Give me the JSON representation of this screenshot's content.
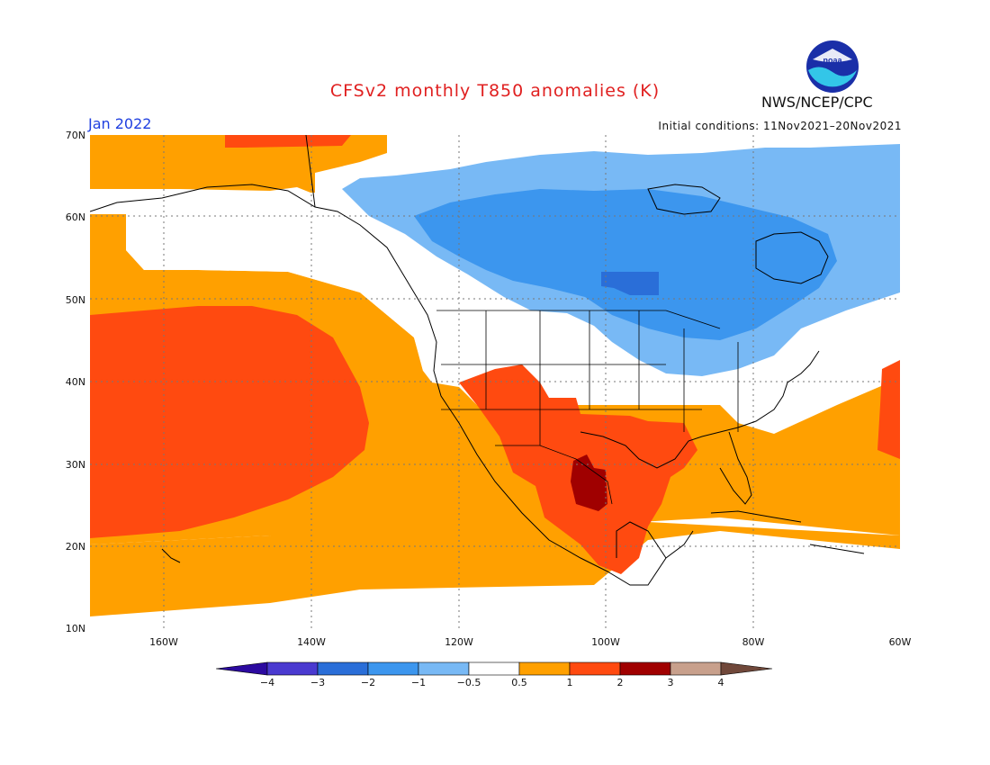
{
  "header": {
    "title": "CFSv2 monthly T850 anomalies (K)",
    "month": "Jan 2022",
    "initial_conditions": "Initial conditions: 11Nov2021–20Nov2021",
    "agency": "NWS/NCEP/CPC",
    "logo_text": "noaa"
  },
  "axes": {
    "lat_labels": [
      "70N",
      "60N",
      "50N",
      "40N",
      "30N",
      "20N",
      "10N"
    ],
    "lon_labels": [
      "160W",
      "140W",
      "120W",
      "100W",
      "80W",
      "60W"
    ]
  },
  "colorbar": {
    "labels": [
      "−4",
      "−3",
      "−2",
      "−1",
      "−0.5",
      "0.5",
      "1",
      "2",
      "3",
      "4"
    ],
    "colors": [
      "#2c0aa0",
      "#4a3ad0",
      "#2a6ed8",
      "#3c96ee",
      "#78b9f5",
      "#ffffff",
      "#ffa000",
      "#ff4a10",
      "#a00000",
      "#c8a08c",
      "#70483a"
    ]
  },
  "palette": {
    "pos05": "#ffa000",
    "pos1": "#ff4a10",
    "pos2": "#a00000",
    "neg05": "#78b9f5",
    "neg1": "#3c96ee",
    "neg2": "#2a6ed8",
    "land_line": "#000000"
  }
}
